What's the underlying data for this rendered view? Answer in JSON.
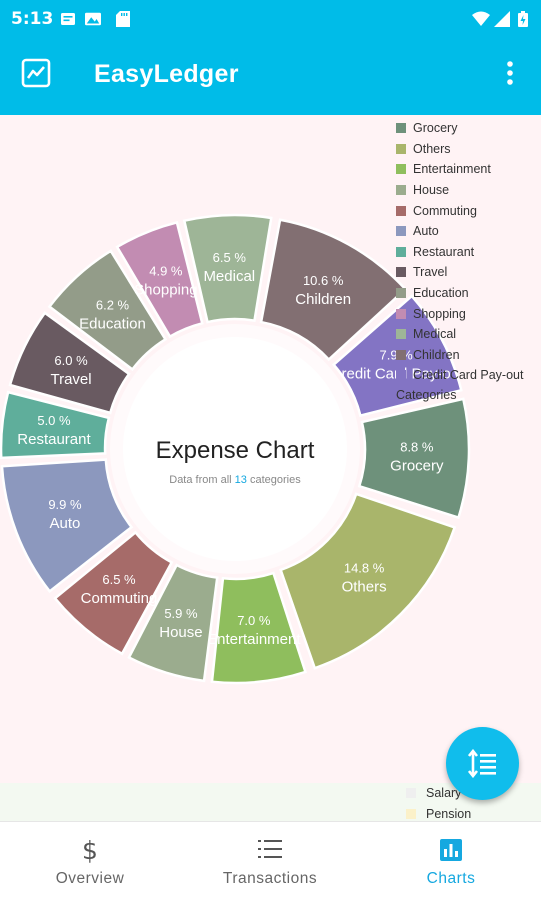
{
  "status_bar": {
    "time": "5:13"
  },
  "app_bar": {
    "title": "EasyLedger"
  },
  "chart": {
    "center_title": "Expense Chart",
    "subtitle_prefix": "Data from all ",
    "subtitle_count": "13",
    "subtitle_suffix": " categories",
    "legend_heading": "Categories"
  },
  "chart_data": {
    "type": "pie",
    "title": "Expense Chart",
    "categories": [
      "Grocery",
      "Others",
      "Entertainment",
      "House",
      "Commuting",
      "Auto",
      "Restaurant",
      "Travel",
      "Education",
      "Shopping",
      "Medical",
      "Children",
      "Credit Card Pay-out"
    ],
    "values": [
      8.8,
      14.8,
      7.0,
      5.9,
      6.5,
      9.9,
      5.0,
      6.0,
      6.2,
      4.9,
      6.5,
      10.6,
      7.9
    ],
    "labels": [
      "8.8 %",
      "14.8 %",
      "7.0 %",
      "5.9 %",
      "6.5 %",
      "9.9 %",
      "5.0 %",
      "6.0 %",
      "6.2 %",
      "4.9 %",
      "6.5 %",
      "10.6 %",
      "7.9 %"
    ],
    "slice_labels": [
      "Grocery",
      "Others",
      "Entertainment",
      "House",
      "Commuting",
      "Auto",
      "Restaurant",
      "Travel",
      "Education",
      "Shopping",
      "Medical",
      "Children",
      "redit Card Pay-o"
    ],
    "colors": [
      "#6E917B",
      "#A9B56B",
      "#8FBE5D",
      "#9BAC8E",
      "#A66B69",
      "#8C98BE",
      "#5FAE9B",
      "#695A61",
      "#939C89",
      "#C28CB2",
      "#9EB597",
      "#826F72",
      "#8374C4"
    ],
    "legend_position": "top-right"
  },
  "income_legend": {
    "items": [
      {
        "label": "Salary",
        "color": "#EFEFEF"
      },
      {
        "label": "Pension",
        "color": "#FBF1C9"
      }
    ]
  },
  "bottom_nav": {
    "overview": "Overview",
    "transactions": "Transactions",
    "charts": "Charts"
  }
}
